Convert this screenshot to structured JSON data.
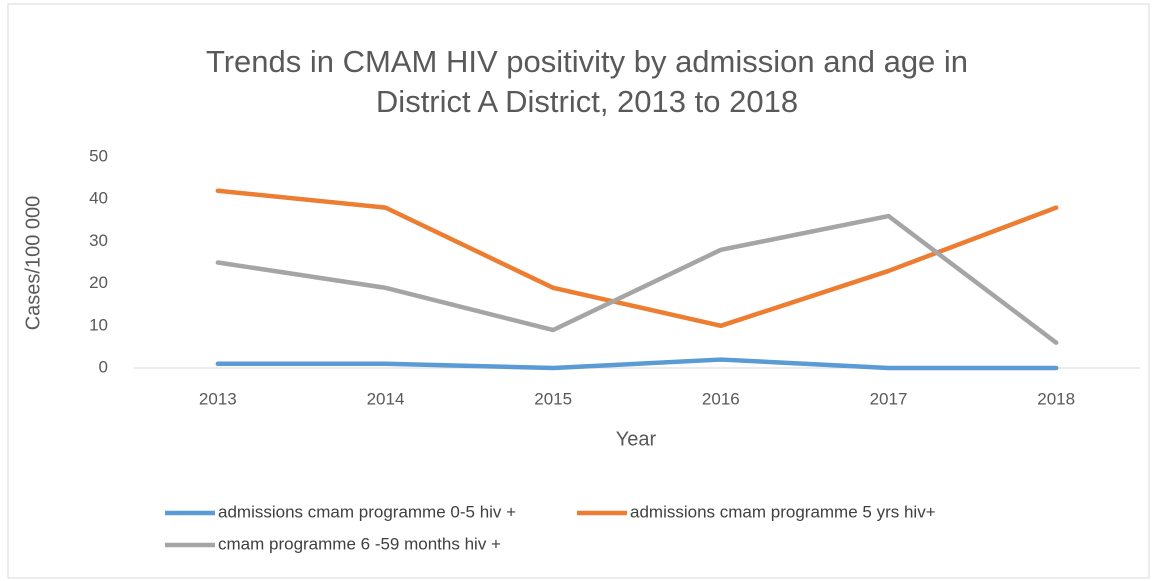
{
  "chart_data": {
    "type": "line",
    "title": [
      "Trends in CMAM HIV positivity by admission and age in",
      "District A District, 2013 to 2018"
    ],
    "x_label": "Year",
    "y_label": "Cases/100 000",
    "categories": [
      "2013",
      "2014",
      "2015",
      "2016",
      "2017",
      "2018"
    ],
    "series": [
      {
        "name": "admissions cmam programme 0-5 hiv +",
        "color": "#5b9bd5",
        "values": [
          1,
          1,
          0,
          2,
          0,
          0
        ]
      },
      {
        "name": "admissions cmam programme 5 yrs hiv+",
        "color": "#ed7d31",
        "values": [
          42,
          38,
          19,
          10,
          23,
          38
        ]
      },
      {
        "name": "cmam programme 6 -59 months hiv +",
        "color": "#a5a5a5",
        "values": [
          25,
          19,
          9,
          28,
          36,
          6
        ]
      }
    ],
    "ylim": [
      0,
      50
    ],
    "yticks": [
      0,
      10,
      20,
      30,
      40,
      50
    ],
    "grid": false,
    "legend": "bottom"
  }
}
